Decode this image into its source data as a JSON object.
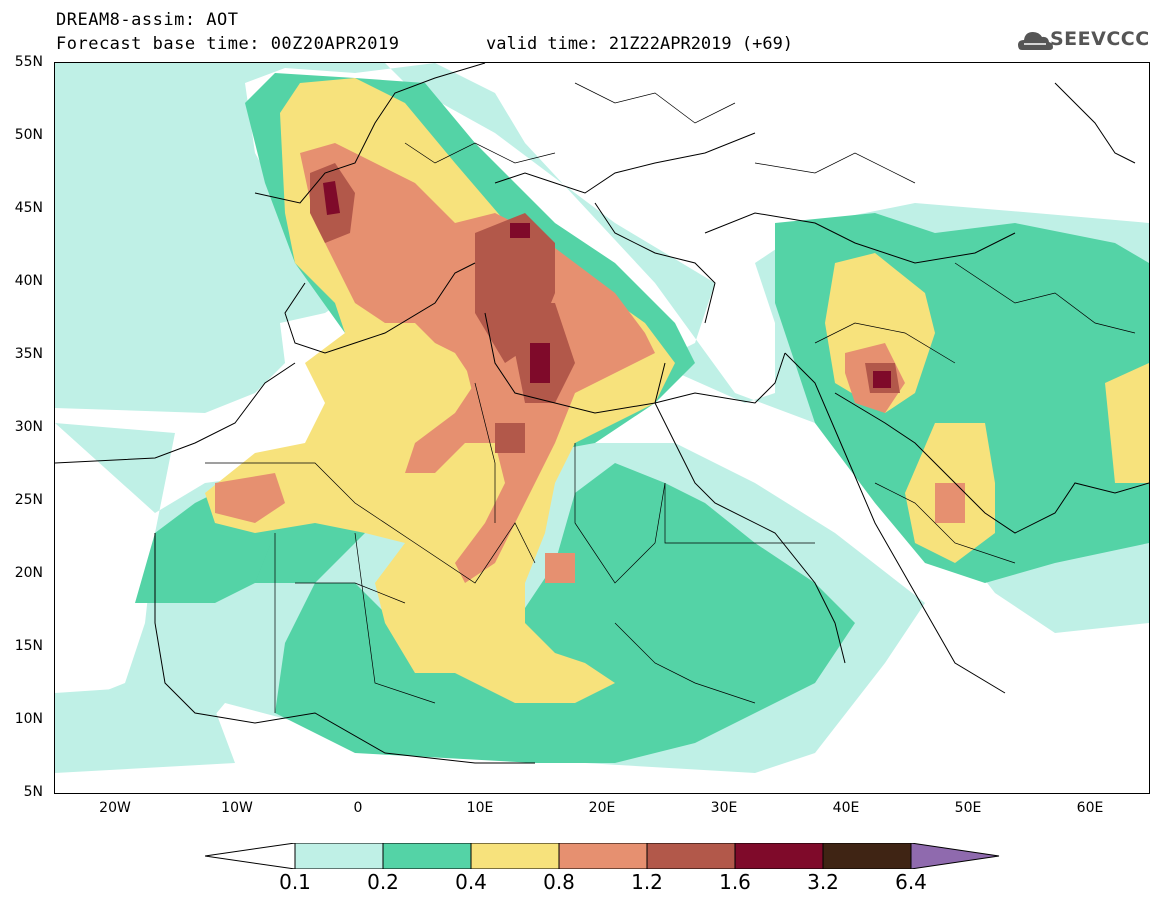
{
  "header": {
    "line1": "DREAM8-assim: AOT",
    "line2": "Forecast base time: 00Z20APR2019",
    "valid": "valid time: 21Z22APR2019 (+69)",
    "logo_text": "SEEVCCC"
  },
  "axes": {
    "lat_labels": [
      "55N",
      "50N",
      "45N",
      "40N",
      "35N",
      "30N",
      "25N",
      "20N",
      "15N",
      "10N",
      "5N"
    ],
    "lon_labels": [
      "20W",
      "10W",
      "0",
      "10E",
      "20E",
      "30E",
      "40E",
      "50E",
      "60E"
    ]
  },
  "colorbar": {
    "labels": [
      "0.1",
      "0.2",
      "0.4",
      "0.8",
      "1.2",
      "1.6",
      "3.2",
      "6.4"
    ],
    "colors": [
      "#ffffff",
      "#bff0e6",
      "#54d3a6",
      "#f7e27c",
      "#e69070",
      "#b2584a",
      "#7f0a2a",
      "#3f2414",
      "#8f6aae"
    ]
  },
  "colors": {
    "aot_0_1": "#bff0e6",
    "aot_0_2": "#54d3a6",
    "aot_0_4": "#f7e27c",
    "aot_0_8": "#e69070",
    "aot_1_2": "#b2584a",
    "aot_1_6": "#7f0a2a"
  }
}
